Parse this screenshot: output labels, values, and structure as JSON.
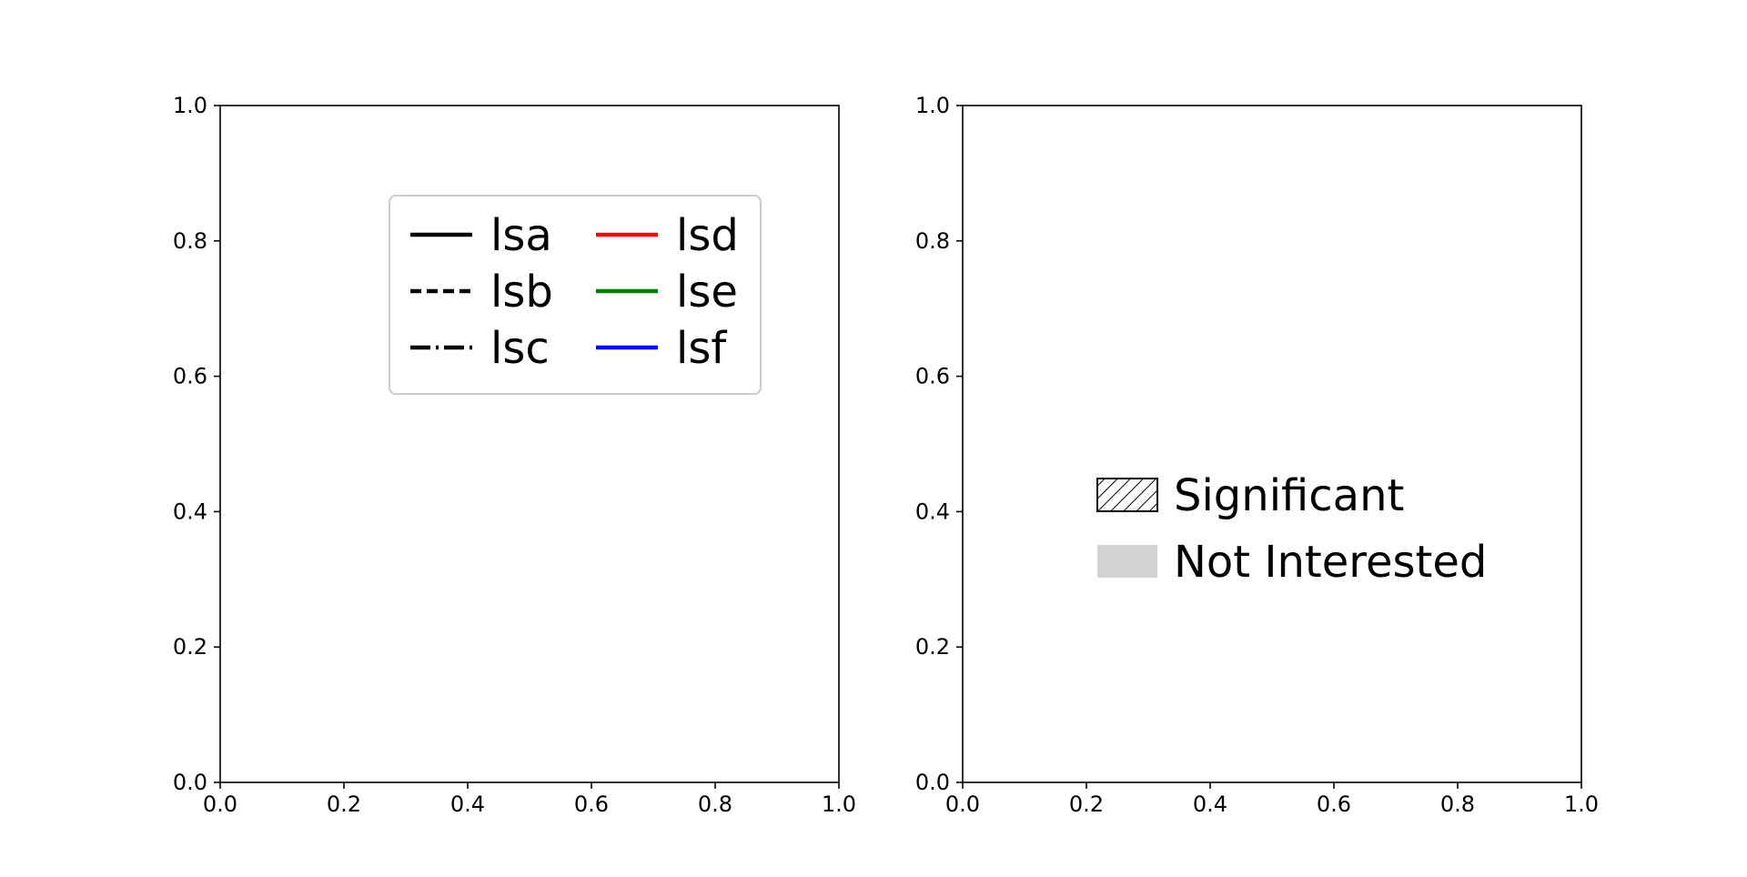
{
  "colors": {
    "axis": "#000000",
    "legend_border": "#cccccc",
    "not_interested_fill": "#d3d3d3"
  },
  "chart_data": [
    {
      "type": "line",
      "title": "",
      "xlabel": "",
      "ylabel": "",
      "xlim": [
        0,
        1
      ],
      "ylim": [
        0,
        1
      ],
      "xticks": [
        "0.0",
        "0.2",
        "0.4",
        "0.6",
        "0.8",
        "1.0"
      ],
      "yticks": [
        "0.0",
        "0.2",
        "0.4",
        "0.6",
        "0.8",
        "1.0"
      ],
      "grid": false,
      "series": [],
      "legend": {
        "placement": "upper-center",
        "columns": 2,
        "frame": true,
        "entries": [
          {
            "label": "lsa",
            "color": "#000000",
            "linestyle": "solid"
          },
          {
            "label": "lsb",
            "color": "#000000",
            "linestyle": "dashed"
          },
          {
            "label": "lsc",
            "color": "#000000",
            "linestyle": "dashdot"
          },
          {
            "label": "lsd",
            "color": "#ff0000",
            "linestyle": "solid"
          },
          {
            "label": "lse",
            "color": "#008000",
            "linestyle": "solid"
          },
          {
            "label": "lsf",
            "color": "#0000ff",
            "linestyle": "solid"
          }
        ]
      }
    },
    {
      "type": "bar",
      "title": "",
      "xlabel": "",
      "ylabel": "",
      "xlim": [
        0,
        1
      ],
      "ylim": [
        0,
        1
      ],
      "xticks": [
        "0.0",
        "0.2",
        "0.4",
        "0.6",
        "0.8",
        "1.0"
      ],
      "yticks": [
        "0.0",
        "0.2",
        "0.4",
        "0.6",
        "0.8",
        "1.0"
      ],
      "grid": false,
      "series": [],
      "legend": {
        "placement": "center",
        "columns": 1,
        "frame": false,
        "entries": [
          {
            "label": "Significant",
            "patch": "hatched",
            "color": "#ffffff"
          },
          {
            "label": "Not Interested",
            "patch": "filled",
            "color": "#d3d3d3"
          }
        ]
      }
    }
  ]
}
